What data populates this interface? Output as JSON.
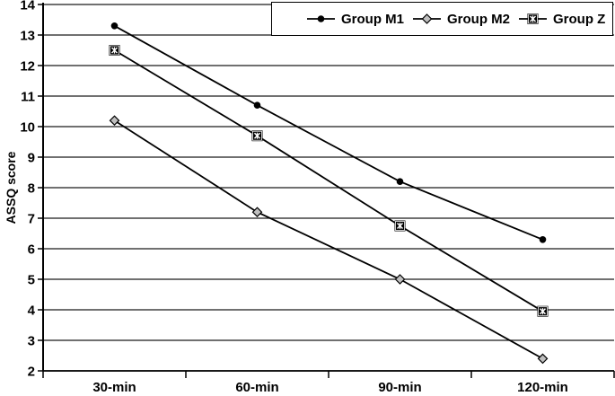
{
  "figure": {
    "background": "#ffffff",
    "line_color": "#000000",
    "text_color": "#000000",
    "gridline_color": "#1a1a1a"
  },
  "chart_data": {
    "type": "line",
    "title": "",
    "xlabel": "",
    "ylabel": "ASSQ score",
    "categories": [
      "30-min",
      "60-min",
      "90-min",
      "120-min"
    ],
    "yticks": [
      2,
      3,
      4,
      5,
      6,
      7,
      8,
      9,
      10,
      11,
      12,
      13,
      14
    ],
    "ylim": [
      2,
      14
    ],
    "grid": "horizontal",
    "legend_position": "top-right-inside",
    "series": [
      {
        "name": "Group M1",
        "marker": "filled-circle",
        "marker_color": "#000000",
        "values": [
          13.3,
          10.7,
          8.2,
          6.3
        ]
      },
      {
        "name": "Group M2",
        "marker": "open-diamond",
        "marker_color": "#bfbfbf",
        "values": [
          10.2,
          7.2,
          5.0,
          2.4
        ]
      },
      {
        "name": "Group Z",
        "marker": "square-x",
        "marker_color": "#000000",
        "values": [
          12.5,
          9.7,
          6.75,
          3.95
        ]
      }
    ]
  }
}
